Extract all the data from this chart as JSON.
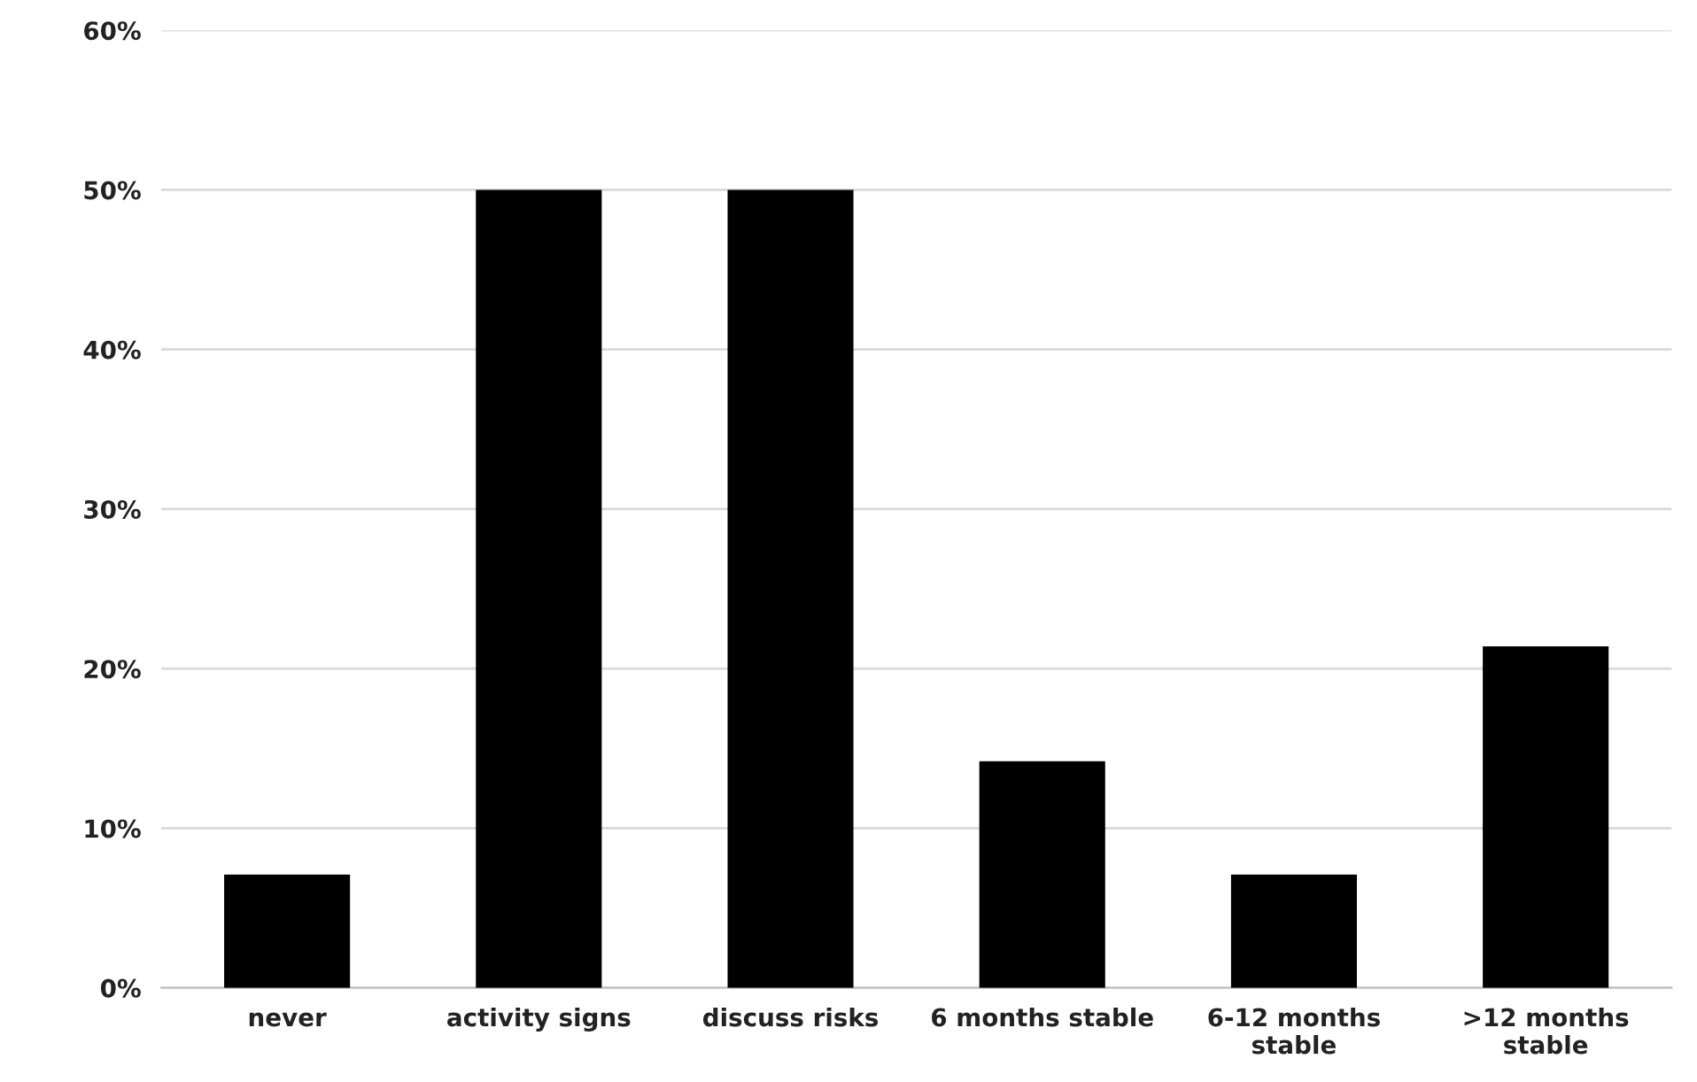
{
  "chart_data": {
    "type": "bar",
    "categories": [
      "never",
      "activity signs",
      "discuss risks",
      "6 months stable",
      "6-12 months\nstable",
      ">12 months\nstable"
    ],
    "values": [
      7.1,
      50,
      50,
      14.2,
      7.1,
      21.4
    ],
    "color": "#000000",
    "ylim": [
      0,
      60
    ],
    "yticks": [
      {
        "value": 0,
        "label": "0%"
      },
      {
        "value": 10,
        "label": "10%"
      },
      {
        "value": 20,
        "label": "20%"
      },
      {
        "value": 30,
        "label": "30%"
      },
      {
        "value": 40,
        "label": "40%"
      },
      {
        "value": 50,
        "label": "50%"
      },
      {
        "value": 60,
        "label": "60%"
      }
    ],
    "grid": "y"
  }
}
